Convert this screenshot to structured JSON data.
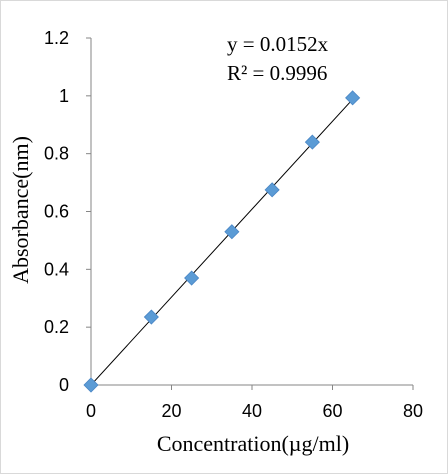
{
  "chart_data": {
    "type": "scatter",
    "title": "",
    "xlabel": "Concentration(µg/ml)",
    "ylabel": "Absorbance(nm)",
    "xlim": [
      0,
      80
    ],
    "ylim": [
      0,
      1.2
    ],
    "xticks": [
      0,
      20,
      40,
      60,
      80
    ],
    "yticks": [
      0,
      0.2,
      0.4,
      0.6,
      0.8,
      1,
      1.2
    ],
    "xtick_labels": [
      "0",
      "20",
      "40",
      "60",
      "80"
    ],
    "ytick_labels": [
      "0",
      "0.2",
      "0.4",
      "0.6",
      "0.8",
      "1",
      "1.2"
    ],
    "grid": false,
    "legend": "none",
    "series": [
      {
        "x": [
          0,
          15,
          25,
          35,
          45,
          55,
          65
        ],
        "y": [
          0,
          0.235,
          0.37,
          0.53,
          0.675,
          0.84,
          0.993
        ],
        "marker": "diamond",
        "color": "#5b9bd5"
      }
    ],
    "trendline": {
      "type": "linear",
      "slope": 0.0152,
      "intercept": 0,
      "color": "#000000"
    },
    "annotations": [
      "y = 0.0152x",
      "R² = 0.9996"
    ]
  }
}
